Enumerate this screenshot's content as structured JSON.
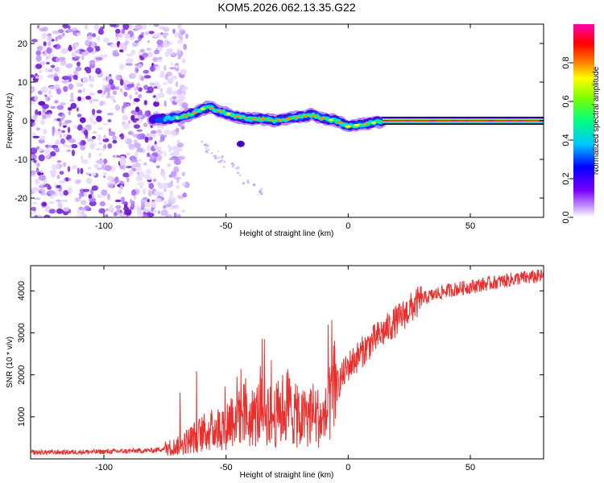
{
  "title": "KOM5.2026.062.13.35.G22",
  "chart_data": [
    {
      "type": "heatmap",
      "name": "spectrogram",
      "xlabel": "Height of straight line (km)",
      "ylabel": "Frequency (Hz)",
      "xlim": [
        -130,
        80
      ],
      "ylim": [
        -25,
        25
      ],
      "xticks": [
        -100,
        -50,
        0,
        50
      ],
      "yticks": [
        -20,
        -10,
        0,
        10,
        20
      ],
      "noise_region_x": [
        -130,
        -72
      ],
      "signal_track": {
        "x": [
          -80,
          -75,
          -70,
          -65,
          -60,
          -57,
          -55,
          -50,
          -45,
          -40,
          -35,
          -30,
          -25,
          -20,
          -15,
          -10,
          -5,
          0,
          5,
          10,
          15,
          20,
          30,
          40,
          50,
          60,
          70,
          80
        ],
        "y": [
          0.5,
          0.5,
          0.8,
          1.5,
          3,
          3.5,
          3,
          2,
          1,
          0.5,
          0.5,
          0,
          0.5,
          1,
          1.5,
          0.5,
          0,
          -1.5,
          -1,
          -0.5,
          0,
          0,
          0,
          0,
          0,
          0,
          0,
          0
        ]
      },
      "colorbar": {
        "label": "Normalized spectral amplitude",
        "range": [
          0,
          1
        ],
        "ticks": [
          "0.0",
          "0.2",
          "0.4",
          "0.6",
          "0.8"
        ]
      }
    },
    {
      "type": "line",
      "name": "snr",
      "xlabel": "Height of straight line (km)",
      "ylabel": "SNR (10 * v/v)",
      "xlim": [
        -130,
        80
      ],
      "ylim": [
        0,
        4600
      ],
      "xticks": [
        -100,
        -50,
        0,
        50
      ],
      "yticks": [
        1000,
        2000,
        3000,
        4000
      ],
      "color": "#e8302f",
      "trend": {
        "x": [
          -130,
          -100,
          -80,
          -70,
          -60,
          -50,
          -45,
          -40,
          -35,
          -30,
          -25,
          -20,
          -15,
          -10,
          -5,
          0,
          10,
          20,
          30,
          40,
          50,
          60,
          70,
          80
        ],
        "y": [
          150,
          170,
          200,
          300,
          600,
          800,
          1200,
          900,
          1200,
          1000,
          1300,
          900,
          1100,
          900,
          1700,
          2200,
          2800,
          3300,
          3800,
          4000,
          4100,
          4200,
          4300,
          4350
        ]
      }
    }
  ]
}
